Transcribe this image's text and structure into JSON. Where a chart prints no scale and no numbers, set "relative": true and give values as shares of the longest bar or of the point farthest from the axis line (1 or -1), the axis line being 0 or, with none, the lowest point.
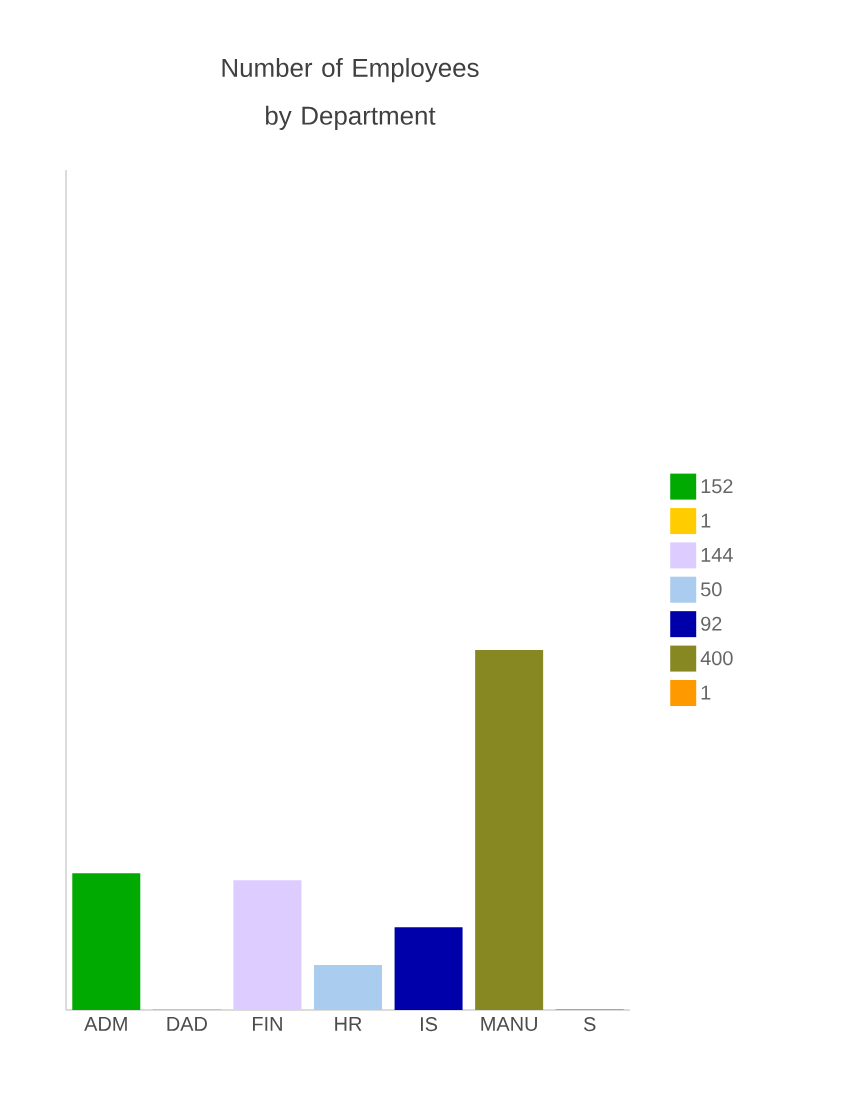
{
  "chart_data": {
    "type": "bar",
    "title": "Number of Employees\nby Department",
    "categories": [
      "ADM",
      "DAD",
      "FIN",
      "HR",
      "IS",
      "MANU",
      "S"
    ],
    "relative": true,
    "series": [
      {
        "name": "152",
        "color": "#00aa00",
        "values": [
          0.38,
          null,
          null,
          null,
          null,
          null,
          null
        ]
      },
      {
        "name": "1",
        "color": "#ffcc00",
        "values": [
          null,
          0.0025,
          null,
          null,
          null,
          null,
          null
        ]
      },
      {
        "name": "144",
        "color": "#ddccff",
        "values": [
          null,
          null,
          0.36,
          null,
          null,
          null,
          null
        ]
      },
      {
        "name": "50",
        "color": "#aaccee",
        "values": [
          null,
          null,
          null,
          0.125,
          null,
          null,
          null
        ]
      },
      {
        "name": "92",
        "color": "#0000aa",
        "values": [
          null,
          null,
          null,
          null,
          0.23,
          null,
          null
        ]
      },
      {
        "name": "400",
        "color": "#888822",
        "values": [
          null,
          null,
          null,
          null,
          null,
          1,
          null
        ]
      },
      {
        "name": "1",
        "color": "#ff9900",
        "values": [
          null,
          null,
          null,
          null,
          null,
          null,
          0.0025
        ]
      }
    ],
    "legend": "right",
    "grid": false
  }
}
